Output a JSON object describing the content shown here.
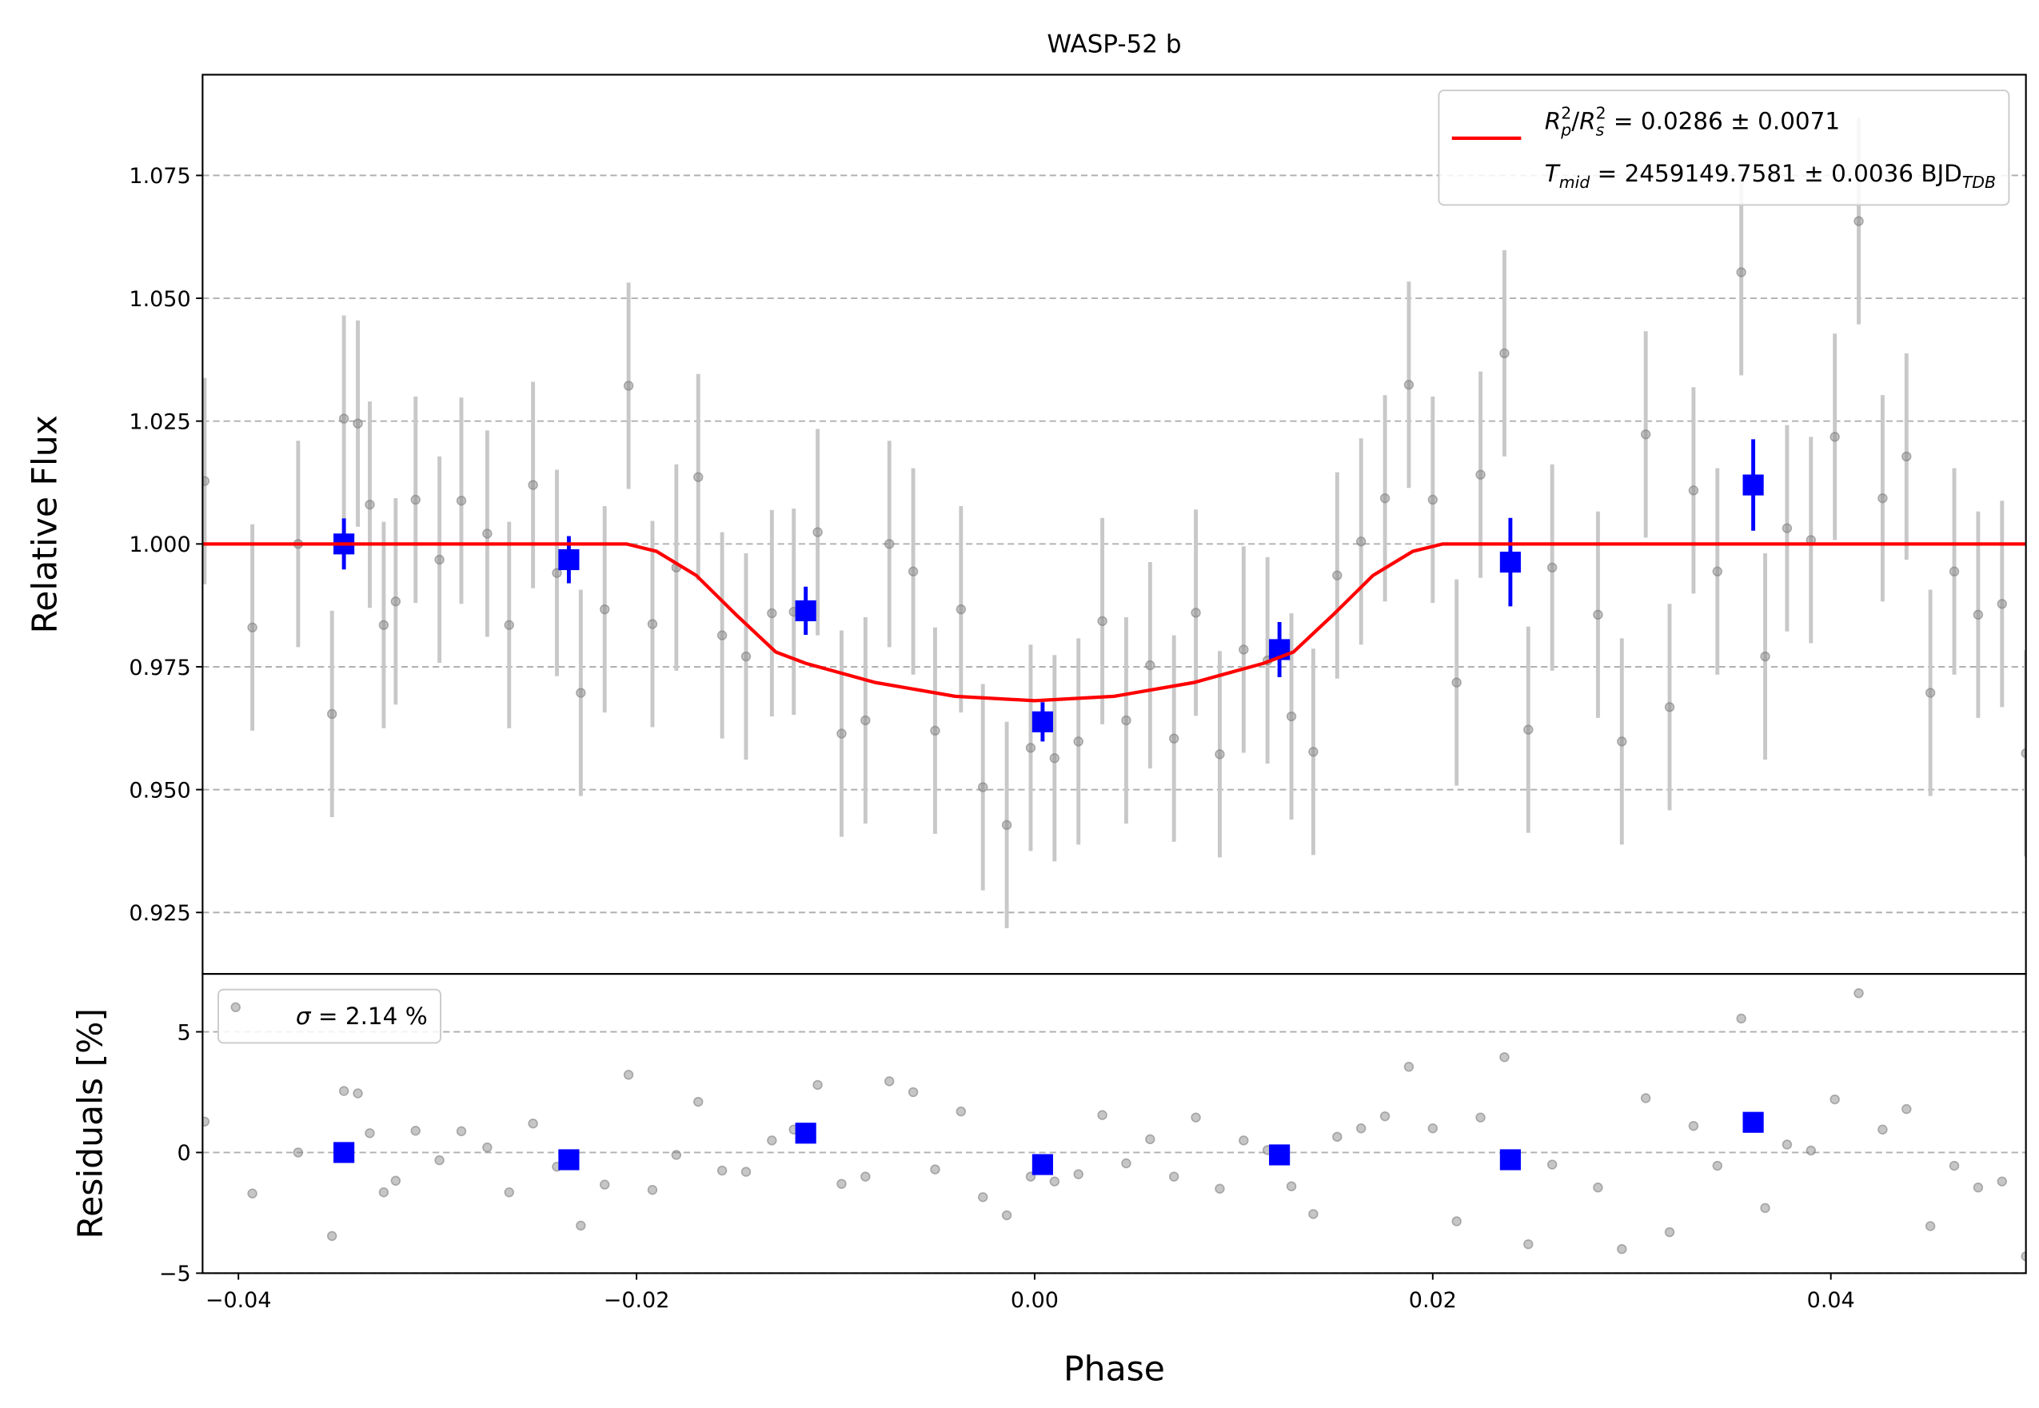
{
  "chart_data": [
    {
      "type": "scatter",
      "title": "WASP-52 b",
      "ylabel": "Relative Flux",
      "xlim": [
        -0.0418,
        0.0498
      ],
      "ylim": [
        0.9125,
        1.0955
      ],
      "yticks": [
        0.925,
        {
          "value": 0.95,
          "label": "0.950"
        },
        0.975,
        {
          "value": 1,
          "label": "1.000"
        },
        1.025,
        {
          "value": 1.05,
          "label": "1.050"
        },
        1.075
      ],
      "grid": true,
      "legend": "upper right",
      "series": [
        {
          "marker": "circle",
          "color": "#808080",
          "error_color": "#c8c8c8",
          "yerr": 0.021,
          "x": [
            -0.0417,
            -0.0393,
            -0.037,
            -0.0353,
            -0.0347,
            -0.034,
            -0.0334,
            -0.0327,
            -0.0321,
            -0.0311,
            -0.0299,
            -0.0288,
            -0.0275,
            -0.0264,
            -0.0252,
            -0.024,
            -0.0228,
            -0.0216,
            -0.0204,
            -0.0192,
            -0.018,
            -0.0169,
            -0.0157,
            -0.0145,
            -0.0132,
            -0.0121,
            -0.0109,
            -0.0097,
            -0.0085,
            -0.0073,
            -0.0061,
            -0.005,
            -0.0037,
            -0.0026,
            -0.0014,
            -0.0002,
            0.001,
            0.0022,
            0.0034,
            0.0046,
            0.0058,
            0.007,
            0.0081,
            0.0093,
            0.0105,
            0.0117,
            0.0129,
            0.014,
            0.0152,
            0.0164,
            0.0176,
            0.0188,
            0.02,
            0.0212,
            0.0224,
            0.0236,
            0.0248,
            0.026,
            0.0283,
            0.0295,
            0.0307,
            0.0319,
            0.0331,
            0.0343,
            0.0355,
            0.0367,
            0.0378,
            0.039,
            0.0402,
            0.0414,
            0.0426,
            0.0438,
            0.045,
            0.0462,
            0.0474,
            0.0486,
            0.0498
          ],
          "values": [
            1.0128,
            0.983,
            1.0,
            0.9654,
            1.0255,
            1.0245,
            1.008,
            0.9835,
            0.9883,
            1.009,
            0.9968,
            1.0088,
            1.0021,
            0.9835,
            1.012,
            0.9941,
            0.9697,
            0.9867,
            1.0322,
            0.9837,
            0.9952,
            1.0136,
            0.9814,
            0.9771,
            0.9859,
            0.9862,
            1.0024,
            0.9614,
            0.9641,
            1.0,
            0.9944,
            0.962,
            0.9867,
            0.9505,
            0.9428,
            0.9585,
            0.9564,
            0.9598,
            0.9843,
            0.9641,
            0.9753,
            0.9604,
            0.986,
            0.9572,
            0.9785,
            0.9763,
            0.9649,
            0.9577,
            0.9936,
            1.0005,
            1.0093,
            1.0324,
            1.009,
            0.9718,
            1.0141,
            1.0388,
            0.9622,
            0.9952,
            0.9856,
            0.9598,
            1.0223,
            0.9668,
            1.0109,
            0.9944,
            1.0553,
            0.9771,
            1.0032,
            1.0008,
            1.0218,
            1.0657,
            1.0093,
            1.0178,
            0.9697,
            0.9944,
            0.9856,
            0.9878,
            0.9574
          ]
        },
        {
          "marker": "square",
          "color": "#0000ff",
          "error_color": "#0000ff",
          "x": [
            -0.0347,
            -0.0234,
            -0.0115,
            0.0004,
            0.0123,
            0.0239,
            0.0361
          ],
          "values": [
            1.0,
            0.9968,
            0.9864,
            0.9638,
            0.9785,
            0.9963,
            1.012
          ],
          "yerr": [
            0.0052,
            0.0048,
            0.0049,
            0.004,
            0.0056,
            0.009,
            0.0093
          ]
        },
        {
          "type": "line",
          "color": "#ff0000",
          "name": [
            [
              {
                "text": "R",
                "style": "italic"
              },
              {
                "text": "2",
                "style": "sup"
              },
              {
                "text": "p",
                "style": "sub-italic"
              },
              {
                "text": "/"
              },
              {
                "text": "R",
                "style": "italic"
              },
              {
                "text": "2",
                "style": "sup"
              },
              {
                "text": "s",
                "style": "sub-italic"
              },
              {
                "text": " = 0.0286 ± 0.0071"
              }
            ],
            [
              {
                "text": "T",
                "style": "italic"
              },
              {
                "text": "mid",
                "style": "sub-italic"
              },
              {
                "text": " = 2459149.7581 ± 0.0036 BJD"
              },
              {
                "text": "TDB",
                "style": "sub-italic"
              }
            ]
          ],
          "x": [
            -0.0418,
            -0.0205,
            -0.019,
            -0.017,
            -0.015,
            -0.013,
            -0.0115,
            -0.008,
            -0.004,
            0,
            0.004,
            0.008,
            0.0115,
            0.013,
            0.015,
            0.017,
            0.019,
            0.0205,
            0.0498
          ],
          "values": [
            1,
            1,
            0.9985,
            0.9936,
            0.9856,
            0.978,
            0.9757,
            0.9718,
            0.969,
            0.9681,
            0.969,
            0.9718,
            0.9757,
            0.978,
            0.9856,
            0.9936,
            0.9985,
            1,
            1
          ]
        }
      ]
    },
    {
      "type": "scatter",
      "xlabel": "Phase",
      "ylabel": "Residuals [%]",
      "xlim": [
        -0.0418,
        0.0498
      ],
      "ylim": [
        -5,
        7.4
      ],
      "xticks": [
        {
          "value": -0.04,
          "label": "−0.04"
        },
        {
          "value": -0.02,
          "label": "−0.02"
        },
        {
          "value": 0,
          "label": "0.00"
        },
        0.02,
        0.04
      ],
      "yticks": [
        {
          "value": -5,
          "label": "−5"
        },
        0,
        5
      ],
      "grid": true,
      "legend": "upper left",
      "series": [
        {
          "marker": "circle",
          "color": "#808080",
          "name": [
            [
              {
                "text": "σ",
                "style": "italic"
              },
              {
                "text": " = 2.14 %"
              }
            ]
          ],
          "x": [
            -0.0417,
            -0.0393,
            -0.037,
            -0.0353,
            -0.0347,
            -0.034,
            -0.0334,
            -0.0327,
            -0.0321,
            -0.0311,
            -0.0299,
            -0.0288,
            -0.0275,
            -0.0264,
            -0.0252,
            -0.024,
            -0.0228,
            -0.0216,
            -0.0204,
            -0.0192,
            -0.018,
            -0.0169,
            -0.0157,
            -0.0145,
            -0.0132,
            -0.0121,
            -0.0109,
            -0.0097,
            -0.0085,
            -0.0073,
            -0.0061,
            -0.005,
            -0.0037,
            -0.0026,
            -0.0014,
            -0.0002,
            0.001,
            0.0022,
            0.0034,
            0.0046,
            0.0058,
            0.007,
            0.0081,
            0.0093,
            0.0105,
            0.0117,
            0.0129,
            0.014,
            0.0152,
            0.0164,
            0.0176,
            0.0188,
            0.02,
            0.0212,
            0.0224,
            0.0236,
            0.0248,
            0.026,
            0.0283,
            0.0295,
            0.0307,
            0.0319,
            0.0331,
            0.0343,
            0.0355,
            0.0367,
            0.0378,
            0.039,
            0.0402,
            0.0414,
            0.0426,
            0.0438,
            0.045,
            0.0462,
            0.0474,
            0.0486,
            0.0498
          ],
          "values": [
            1.28,
            -1.7,
            0,
            -3.46,
            2.55,
            2.45,
            0.8,
            -1.65,
            -1.17,
            0.9,
            -0.32,
            0.88,
            0.21,
            -1.65,
            1.2,
            -0.59,
            -3.03,
            -1.33,
            3.22,
            -1.55,
            -0.1,
            2.1,
            -0.75,
            -0.8,
            0.5,
            0.95,
            2.8,
            -1.3,
            -1.0,
            2.95,
            2.5,
            -0.7,
            1.7,
            -1.85,
            -2.6,
            -1.0,
            -1.2,
            -0.9,
            1.55,
            -0.45,
            0.55,
            -1.0,
            1.45,
            -1.5,
            0.5,
            0.1,
            -1.4,
            -2.55,
            0.65,
            1.0,
            1.5,
            3.55,
            1.0,
            -2.85,
            1.45,
            3.95,
            -3.8,
            -0.5,
            -1.45,
            -4.0,
            2.25,
            -3.3,
            1.1,
            -0.55,
            5.55,
            -2.3,
            0.33,
            0.08,
            2.2,
            6.6,
            0.95,
            1.8,
            -3.05,
            -0.55,
            -1.45,
            -1.2,
            -4.3
          ]
        },
        {
          "marker": "square",
          "color": "#0000ff",
          "x": [
            -0.0347,
            -0.0234,
            -0.0115,
            0.0004,
            0.0123,
            0.0239,
            0.0361
          ],
          "values": [
            0,
            -0.3,
            0.8,
            -0.5,
            -0.1,
            -0.3,
            1.25
          ]
        }
      ]
    }
  ]
}
